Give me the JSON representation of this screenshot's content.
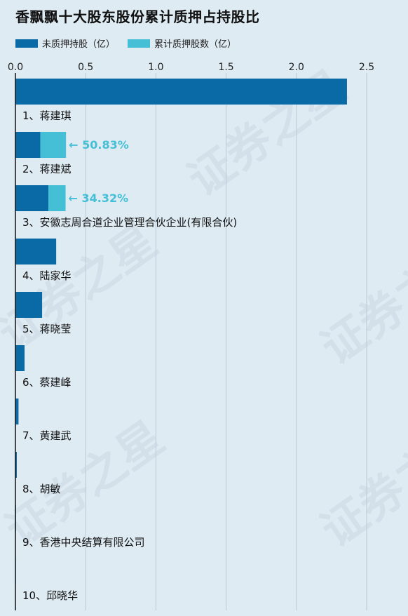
{
  "chart_data": {
    "type": "bar",
    "orientation": "horizontal",
    "title": "香飘飘十大股东股份累计质押占持股比",
    "categories": [
      "1、蒋建琪",
      "2、蒋建斌",
      "3、安徽志周合道企业管理合伙企业(有限合伙)",
      "4、陆家华",
      "5、蒋晓莹",
      "6、蔡建峰",
      "7、黄建武",
      "8、胡敏",
      "9、香港中央结算有限公司",
      "10、邱晓华"
    ],
    "series": [
      {
        "name": "未质押持股（亿）",
        "color": "#0a6aa6",
        "values": [
          2.36,
          0.177,
          0.235,
          0.29,
          0.19,
          0.065,
          0.022,
          0.01,
          0.004,
          0.003
        ]
      },
      {
        "name": "累计质押股数（亿）",
        "color": "#45bfd6",
        "values": [
          0,
          0.183,
          0.122,
          0,
          0,
          0,
          0,
          0,
          0,
          0
        ]
      }
    ],
    "annotations": [
      {
        "category_index": 1,
        "text": "← 50.83%"
      },
      {
        "category_index": 2,
        "text": "← 34.32%"
      }
    ],
    "xlim": [
      0,
      2.8
    ],
    "xticks": [
      "0.0",
      "0.5",
      "1.0",
      "1.5",
      "2.0",
      "2.5"
    ],
    "xtick_values": [
      0,
      0.5,
      1.0,
      1.5,
      2.0,
      2.5
    ],
    "grid": true,
    "legend_position": "top-left",
    "annotation_color": "#45bfd6"
  },
  "watermark_text": "证券之星"
}
